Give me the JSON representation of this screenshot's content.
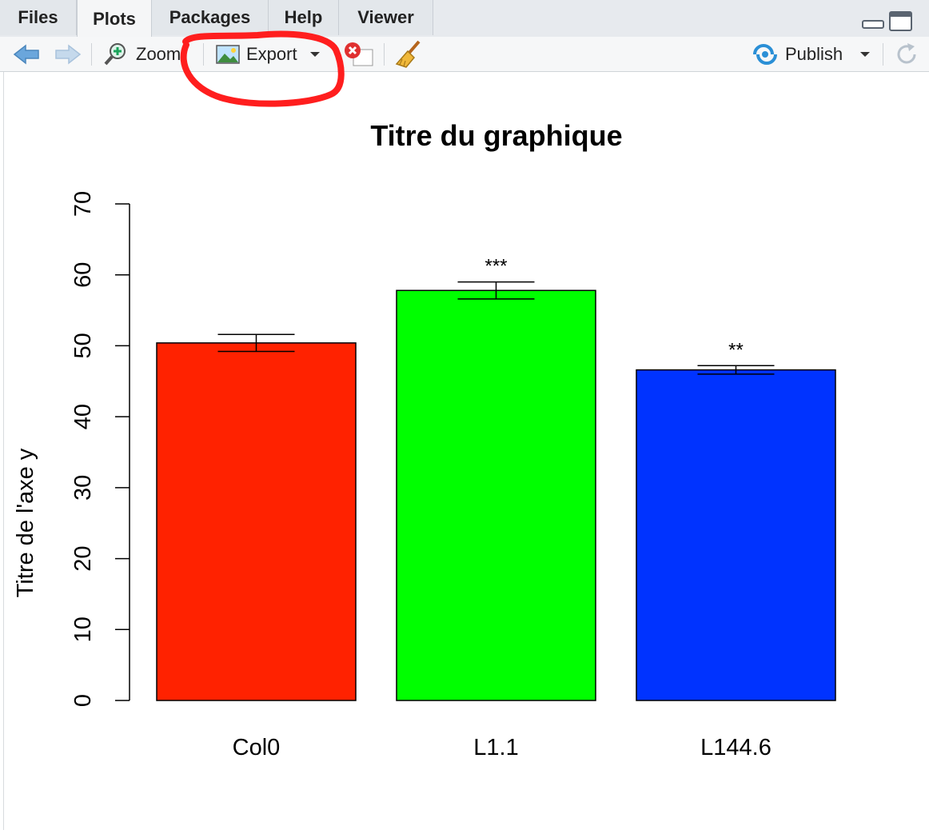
{
  "tabs": [
    {
      "label": "Files",
      "active": false
    },
    {
      "label": "Plots",
      "active": true
    },
    {
      "label": "Packages",
      "active": false
    },
    {
      "label": "Help",
      "active": false
    },
    {
      "label": "Viewer",
      "active": false
    }
  ],
  "toolbar": {
    "zoom_label": "Zoom",
    "export_label": "Export",
    "publish_label": "Publish",
    "icons": {
      "back": "arrow-left-icon",
      "forward": "arrow-right-icon",
      "zoom": "magnifier-plus-icon",
      "export": "image-icon",
      "remove": "remove-plot-icon",
      "clear": "broom-icon",
      "publish": "publish-icon",
      "refresh": "refresh-icon"
    }
  },
  "colors": {
    "annotation_circle": "#ff1e1e",
    "bar_col0": "#ff2200",
    "bar_l11": "#00ff00",
    "bar_l1446": "#0033ff"
  },
  "chart_data": {
    "type": "bar",
    "title": "Titre du graphique",
    "xlabel": "",
    "ylabel": "Titre de l'axe y",
    "categories": [
      "Col0",
      "L1.1",
      "L144.6"
    ],
    "values": [
      50.4,
      57.8,
      46.6
    ],
    "error_low": [
      49.2,
      56.6,
      46.0
    ],
    "error_high": [
      51.6,
      59.0,
      47.2
    ],
    "significance": [
      "",
      "***",
      "**"
    ],
    "colors": [
      "#ff2200",
      "#00ff00",
      "#0033ff"
    ],
    "ylim": [
      0,
      70
    ],
    "yticks": [
      0,
      10,
      20,
      30,
      40,
      50,
      60,
      70
    ],
    "grid": false,
    "legend": "none"
  }
}
